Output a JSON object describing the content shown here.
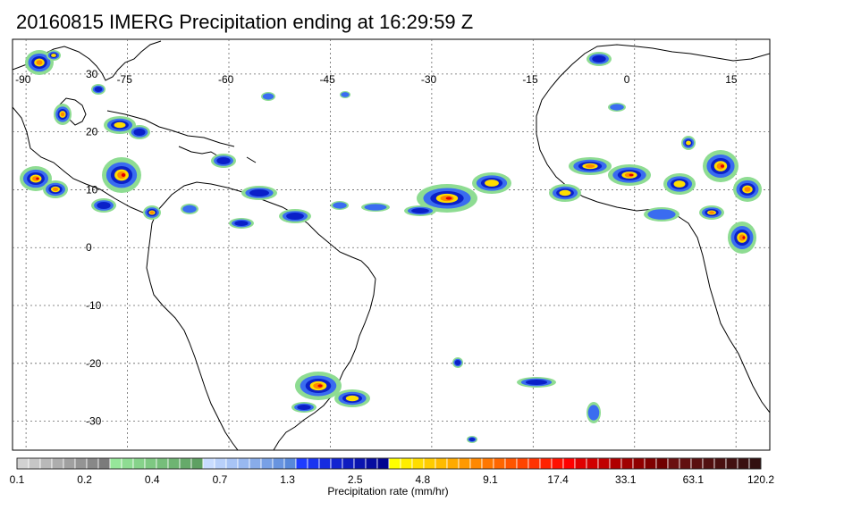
{
  "title": "20160815 IMERG Precipitation ending at 16:29:59 Z",
  "map": {
    "lon_ticks": [
      "-90",
      "-75",
      "-60",
      "-45",
      "-30",
      "-15",
      "0",
      "15"
    ],
    "lat_ticks": [
      "30",
      "20",
      "10",
      "0",
      "-10",
      "-20",
      "-30"
    ],
    "lon_range": [
      -92,
      20
    ],
    "lat_range": [
      36,
      -35
    ]
  },
  "colorbar": {
    "label": "Precipitation rate (mm/hr)",
    "tick_labels": [
      "0.1",
      "0.2",
      "0.4",
      "0.7",
      "1.3",
      "2.5",
      "4.8",
      "9.1",
      "17.4",
      "33.1",
      "63.1",
      "120.2"
    ],
    "colors": [
      "#d2d2d2",
      "#c6c6c6",
      "#b9b9b9",
      "#adadad",
      "#a0a0a0",
      "#949494",
      "#888888",
      "#7b7b7b",
      "#96e69a",
      "#8edc92",
      "#86d28a",
      "#7ec882",
      "#76be7a",
      "#6eb472",
      "#66aa6a",
      "#5ea062",
      "#c8dcff",
      "#b8d0fa",
      "#a8c4f5",
      "#98b8f0",
      "#88acea",
      "#78a0e5",
      "#6894e0",
      "#5888da",
      "#1e3cff",
      "#1a34f0",
      "#162ce0",
      "#1224d0",
      "#0e1cc0",
      "#0a14b0",
      "#060ca0",
      "#020490",
      "#ffff00",
      "#ffee00",
      "#ffdd00",
      "#ffcc00",
      "#ffbb00",
      "#ffaa00",
      "#ff9900",
      "#ff8800",
      "#ff7700",
      "#ff6600",
      "#ff5500",
      "#ff4400",
      "#ff3300",
      "#ff2200",
      "#ff1100",
      "#ff0000",
      "#e00000",
      "#d00000",
      "#c00000",
      "#b00000",
      "#a00000",
      "#900000",
      "#800000",
      "#700000",
      "#6a1010",
      "#621010",
      "#5a1010",
      "#521010",
      "#4a1010",
      "#421010",
      "#3a1010",
      "#321010"
    ]
  },
  "legend_colors": {
    "light": "#8edc92",
    "blue": "#3a6cf0",
    "dark_blue": "#0a20c8",
    "yellow": "#ffdd00",
    "orange": "#ff8800",
    "red": "#e00000"
  }
}
